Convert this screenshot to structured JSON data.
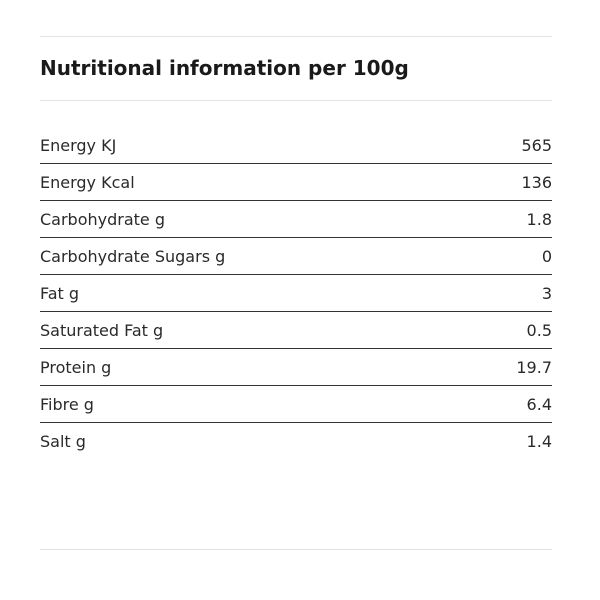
{
  "header": {
    "title": "Nutritional information per 100g"
  },
  "table": {
    "rows": [
      [
        "Energy KJ",
        "565"
      ],
      [
        "Energy Kcal",
        "136"
      ],
      [
        "Carbohydrate g",
        "1.8"
      ],
      [
        "Carbohydrate Sugars g",
        "0"
      ],
      [
        "Fat g",
        "3"
      ],
      [
        "Saturated Fat g",
        "0.5"
      ],
      [
        "Protein g",
        "19.7"
      ],
      [
        "Fibre g",
        "6.4"
      ],
      [
        "Salt g",
        "1.4"
      ]
    ]
  }
}
